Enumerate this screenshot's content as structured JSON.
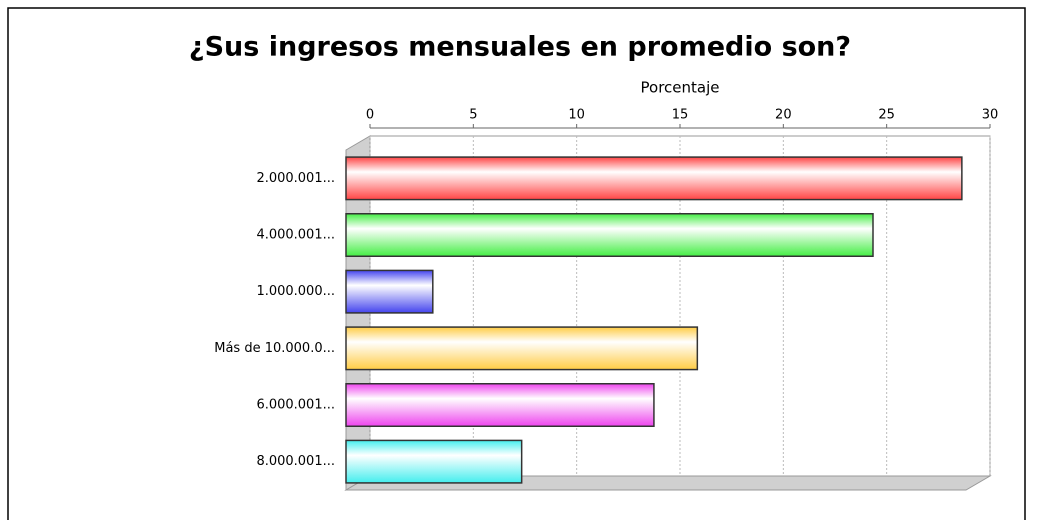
{
  "chart_data": {
    "type": "bar",
    "orientation": "horizontal",
    "title": "¿Sus ingresos mensuales en promedio son?",
    "x_label": "Porcentaje",
    "categories": [
      "2.000.001...",
      "4.000.001...",
      "1.000.000...",
      "Más de 10.000.0...",
      "6.000.001...",
      "8.000.001..."
    ],
    "values": [
      29.8,
      25.5,
      4.2,
      17.0,
      14.9,
      8.5
    ],
    "colors": [
      "#ff4444",
      "#44ee44",
      "#4444ee",
      "#ffcc44",
      "#ee44ee",
      "#44eeee"
    ],
    "xlim": [
      0,
      30
    ],
    "xticks": [
      0,
      5,
      10,
      15,
      20,
      25,
      30
    ],
    "grid": true
  }
}
